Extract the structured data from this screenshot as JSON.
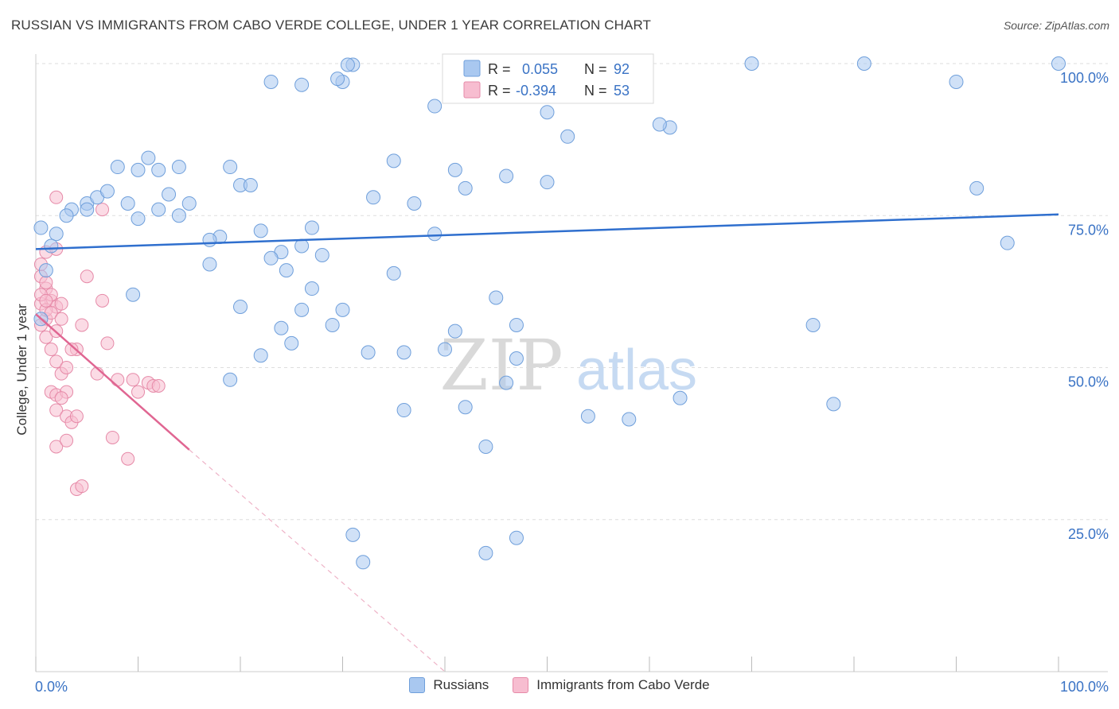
{
  "title": "RUSSIAN VS IMMIGRANTS FROM CABO VERDE COLLEGE, UNDER 1 YEAR CORRELATION CHART",
  "source": "Source: ZipAtlas.com",
  "watermark": {
    "zip": "ZIP",
    "atlas": "atlas"
  },
  "colors": {
    "blue_fill": "#a9c8f0",
    "blue_stroke": "#6f9fdb",
    "blue_line": "#2f6fce",
    "pink_fill": "#f7bdd0",
    "pink_stroke": "#e68aa8",
    "pink_line": "#e06692",
    "text_blue": "#3a73c5",
    "grid": "#dddddd"
  },
  "stats": [
    {
      "r_label": "R =",
      "r_value": "0.055",
      "n_label": "N =",
      "n_value": "92"
    },
    {
      "r_label": "R =",
      "r_value": "-0.394",
      "n_label": "N =",
      "n_value": "53"
    }
  ],
  "legend": {
    "russians": "Russians",
    "cabo": "Immigrants from Cabo Verde"
  },
  "chart_data": {
    "type": "scatter",
    "xlabel": "",
    "ylabel": "College, Under 1 year",
    "xlim": [
      0,
      100
    ],
    "ylim": [
      0,
      100
    ],
    "x_tick_labels": [
      "0.0%",
      "100.0%"
    ],
    "y_tick_labels": [
      "25.0%",
      "50.0%",
      "75.0%",
      "100.0%"
    ],
    "y_ticks": [
      25,
      50,
      75,
      100
    ],
    "x_minor_ticks": [
      0,
      10,
      20,
      30,
      40,
      50,
      60,
      70,
      80,
      90,
      100
    ],
    "grid": true,
    "legend_position": "bottom",
    "series": [
      {
        "name": "Russians",
        "trend": {
          "x": [
            0,
            100
          ],
          "y": [
            69.5,
            75.2
          ]
        },
        "points": [
          [
            2,
            72
          ],
          [
            1.5,
            70
          ],
          [
            3.5,
            76
          ],
          [
            5,
            77
          ],
          [
            6,
            78
          ],
          [
            7,
            79
          ],
          [
            5,
            76
          ],
          [
            3,
            75
          ],
          [
            8,
            83
          ],
          [
            10,
            82.5
          ],
          [
            12,
            82.5
          ],
          [
            11,
            84.5
          ],
          [
            14,
            83
          ],
          [
            9,
            77
          ],
          [
            13,
            78.5
          ],
          [
            15,
            77
          ],
          [
            20,
            80
          ],
          [
            21,
            80
          ],
          [
            19,
            83
          ],
          [
            22,
            72.5
          ],
          [
            24,
            69
          ],
          [
            23,
            68
          ],
          [
            26,
            70
          ],
          [
            18,
            71.5
          ],
          [
            17,
            71
          ],
          [
            14,
            75
          ],
          [
            12,
            76
          ],
          [
            10,
            74.5
          ],
          [
            24.5,
            66
          ],
          [
            27,
            73
          ],
          [
            33,
            78
          ],
          [
            37,
            77
          ],
          [
            42,
            79.5
          ],
          [
            41,
            82.5
          ],
          [
            46,
            81.5
          ],
          [
            50,
            80.5
          ],
          [
            52,
            88
          ],
          [
            50,
            92
          ],
          [
            62,
            89.5
          ],
          [
            61,
            90
          ],
          [
            51,
            100
          ],
          [
            39,
            93
          ],
          [
            30,
            97
          ],
          [
            26,
            96.5
          ],
          [
            31,
            99.8
          ],
          [
            30.5,
            99.8
          ],
          [
            35,
            84
          ],
          [
            35,
            65.5
          ],
          [
            28,
            68.5
          ],
          [
            27,
            63
          ],
          [
            20,
            60
          ],
          [
            24,
            56.5
          ],
          [
            29,
            57
          ],
          [
            26,
            59.5
          ],
          [
            22,
            52
          ],
          [
            25,
            54
          ],
          [
            30,
            59.5
          ],
          [
            19,
            48
          ],
          [
            36,
            52.5
          ],
          [
            32.5,
            52.5
          ],
          [
            40,
            53
          ],
          [
            41,
            56
          ],
          [
            45,
            61.5
          ],
          [
            47,
            57
          ],
          [
            36,
            43
          ],
          [
            46,
            47.5
          ],
          [
            42,
            43.5
          ],
          [
            44,
            37
          ],
          [
            47,
            51.5
          ],
          [
            63,
            45
          ],
          [
            54,
            42
          ],
          [
            58,
            41.5
          ],
          [
            76,
            57
          ],
          [
            92,
            79.5
          ],
          [
            78,
            44
          ],
          [
            90,
            97
          ],
          [
            100,
            100
          ],
          [
            95,
            70.5
          ],
          [
            70,
            100
          ],
          [
            81,
            100
          ],
          [
            31,
            22.5
          ],
          [
            32,
            18
          ],
          [
            44,
            19.5
          ],
          [
            47,
            22
          ],
          [
            1,
            66
          ],
          [
            0.5,
            58
          ],
          [
            9.5,
            62
          ],
          [
            17,
            67
          ],
          [
            39,
            72
          ],
          [
            29.5,
            97.5
          ],
          [
            23,
            97
          ],
          [
            0.5,
            73
          ]
        ]
      },
      {
        "name": "Immigrants from Cabo Verde",
        "trend": {
          "x": [
            0,
            15
          ],
          "y": [
            58.8,
            36.5
          ]
        },
        "trend_dashed": {
          "x": [
            15,
            40
          ],
          "y": [
            36.5,
            0
          ]
        },
        "points": [
          [
            0.5,
            65
          ],
          [
            1,
            63
          ],
          [
            1.5,
            61
          ],
          [
            2,
            60
          ],
          [
            0.5,
            60.5
          ],
          [
            1,
            58
          ],
          [
            2.5,
            60.5
          ],
          [
            1,
            55
          ],
          [
            1.5,
            53
          ],
          [
            2,
            51
          ],
          [
            2.5,
            49
          ],
          [
            3,
            50
          ],
          [
            4,
            53
          ],
          [
            4.5,
            57
          ],
          [
            5,
            65
          ],
          [
            6,
            49
          ],
          [
            6.5,
            61
          ],
          [
            7,
            54
          ],
          [
            8,
            48
          ],
          [
            9.5,
            48
          ],
          [
            10,
            46
          ],
          [
            11,
            47.5
          ],
          [
            11.5,
            47
          ],
          [
            12,
            47
          ],
          [
            1.5,
            46
          ],
          [
            2,
            45.5
          ],
          [
            2,
            43
          ],
          [
            3,
            42
          ],
          [
            3.5,
            41
          ],
          [
            4,
            42
          ],
          [
            2,
            37
          ],
          [
            3,
            38
          ],
          [
            7.5,
            38.5
          ],
          [
            9,
            35
          ],
          [
            4,
            30
          ],
          [
            4.5,
            30.5
          ],
          [
            1,
            69
          ],
          [
            2,
            69.5
          ],
          [
            0.5,
            67
          ],
          [
            1,
            64
          ],
          [
            1.5,
            62
          ],
          [
            2,
            78
          ],
          [
            6.5,
            76
          ],
          [
            0.5,
            62
          ],
          [
            1,
            59.5
          ],
          [
            2,
            56
          ],
          [
            3,
            46
          ],
          [
            2.5,
            45
          ],
          [
            3.5,
            53
          ],
          [
            1.5,
            59
          ],
          [
            0.5,
            57
          ],
          [
            2.5,
            58
          ],
          [
            1,
            61
          ]
        ]
      }
    ]
  }
}
